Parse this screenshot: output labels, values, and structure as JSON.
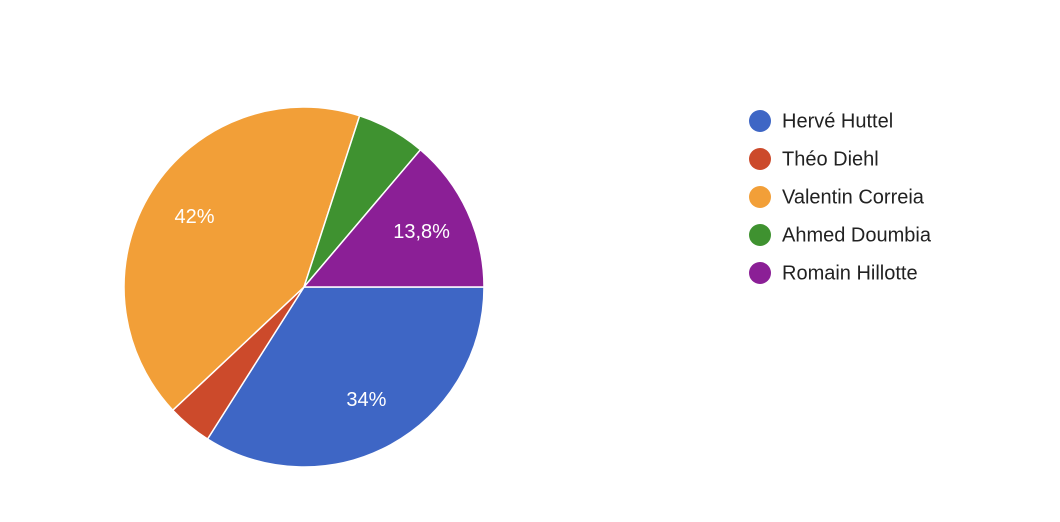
{
  "chart_data": {
    "type": "pie",
    "categories": [
      "Hervé Huttel",
      "Théo Diehl",
      "Valentin Correia",
      "Ahmed Doumbia",
      "Romain Hillotte"
    ],
    "values": [
      34,
      4,
      42,
      6.2,
      13.8
    ],
    "value_labels": [
      "34%",
      null,
      "42%",
      null,
      "13,8%"
    ],
    "colors": [
      "#3e66c5",
      "#cc4a2b",
      "#f29f38",
      "#3f9230",
      "#8b1f96"
    ],
    "legend": "right"
  }
}
